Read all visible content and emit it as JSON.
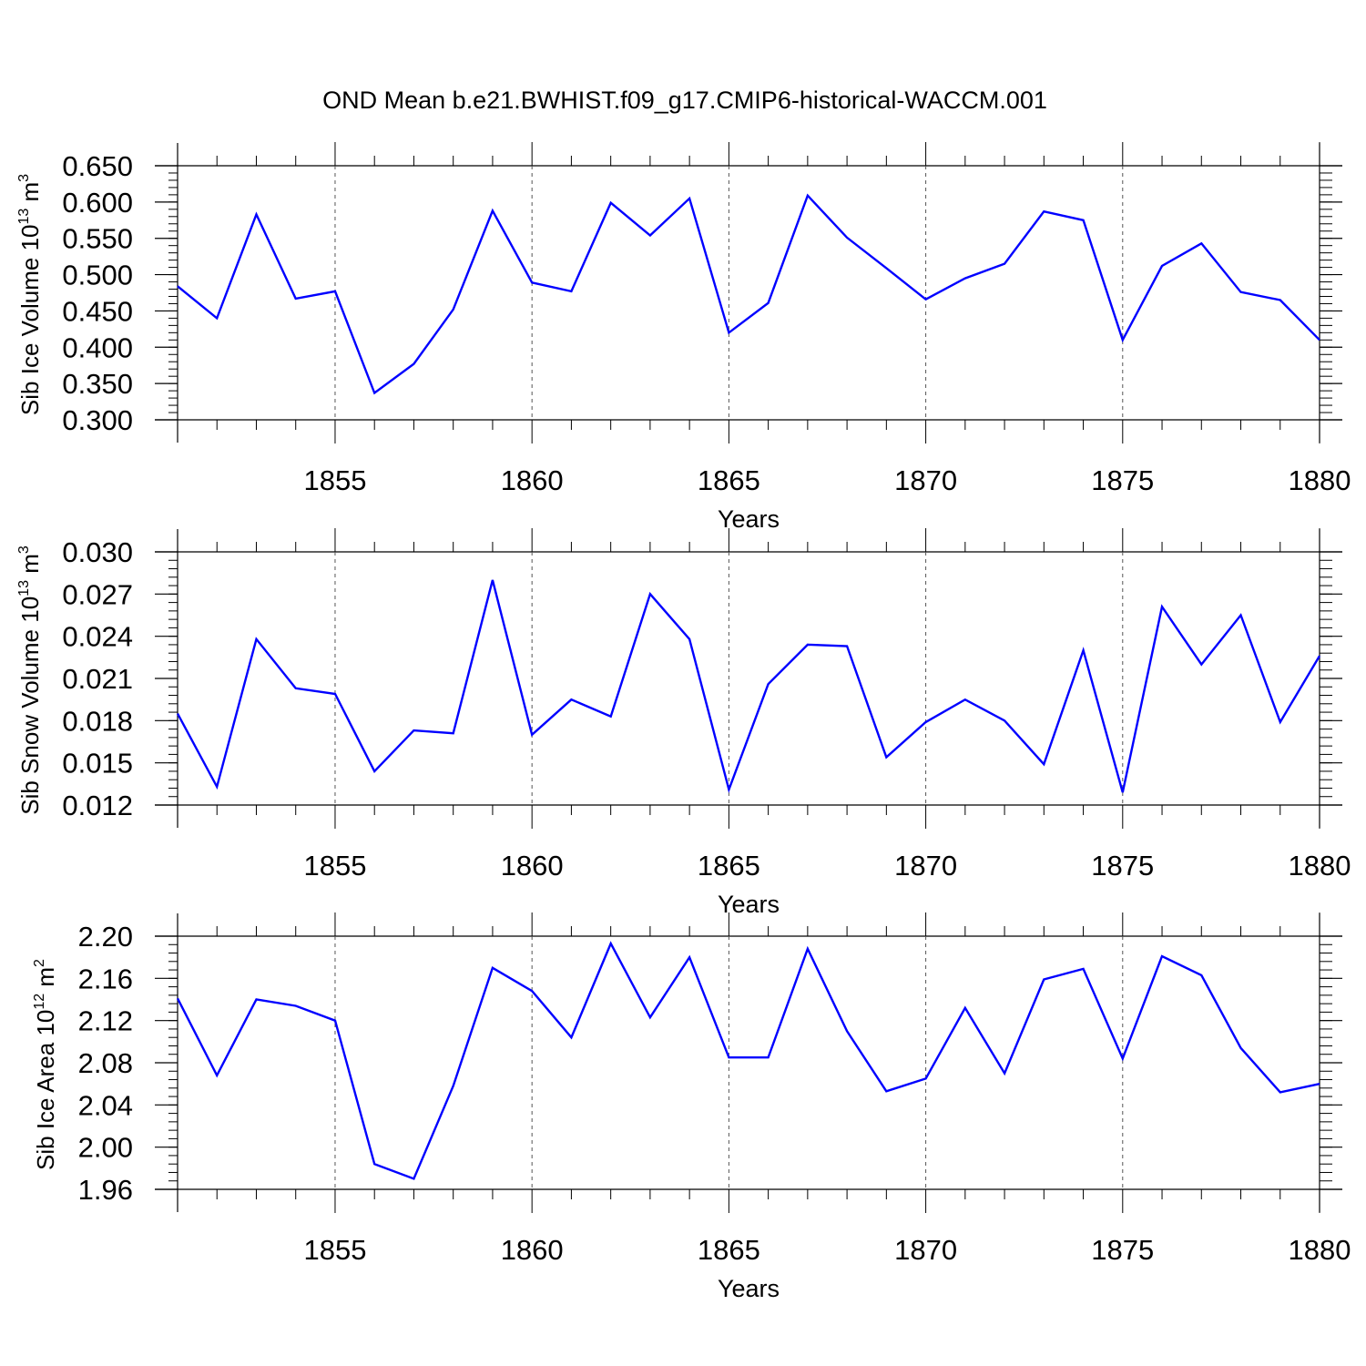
{
  "title": "OND Mean b.e21.BWHIST.f09_g17.CMIP6-historical-WACCM.001",
  "chart_data": [
    {
      "type": "line",
      "title": "OND Mean b.e21.BWHIST.f09_g17.CMIP6-historical-WACCM.001",
      "xlabel": "Years",
      "ylabel": {
        "main": "Sib Ice Volume 10",
        "sup": "13",
        "unit": " m",
        "unit_sup": "3"
      },
      "xlim": [
        1851,
        1880
      ],
      "ylim": [
        0.3,
        0.65
      ],
      "x_ticks": [
        1855,
        1860,
        1865,
        1870,
        1875,
        1880
      ],
      "x_tick_labels": [
        "1855",
        "1860",
        "1865",
        "1870",
        "1875",
        "1880"
      ],
      "y_ticks": [
        0.3,
        0.35,
        0.4,
        0.45,
        0.5,
        0.55,
        0.6,
        0.65
      ],
      "y_tick_labels": [
        "0.300",
        "0.350",
        "0.400",
        "0.450",
        "0.500",
        "0.550",
        "0.600",
        "0.650"
      ],
      "y_minor_step": 0.01,
      "gridlines_x": [
        1855,
        1860,
        1865,
        1870,
        1875
      ],
      "line_color": "#0000ff",
      "x": [
        1851,
        1852,
        1853,
        1854,
        1855,
        1856,
        1857,
        1858,
        1859,
        1860,
        1861,
        1862,
        1863,
        1864,
        1865,
        1866,
        1867,
        1868,
        1869,
        1870,
        1871,
        1872,
        1873,
        1874,
        1875,
        1876,
        1877,
        1878,
        1879,
        1880
      ],
      "values": [
        0.484,
        0.44,
        0.583,
        0.467,
        0.477,
        0.337,
        0.377,
        0.452,
        0.588,
        0.489,
        0.477,
        0.599,
        0.554,
        0.605,
        0.42,
        0.461,
        0.609,
        0.551,
        0.509,
        0.466,
        0.495,
        0.515,
        0.587,
        0.575,
        0.41,
        0.512,
        0.543,
        0.476,
        0.465,
        0.41
      ]
    },
    {
      "type": "line",
      "xlabel": "Years",
      "ylabel": {
        "main": "Sib Snow Volume 10",
        "sup": "13",
        "unit": " m",
        "unit_sup": "3"
      },
      "xlim": [
        1851,
        1880
      ],
      "ylim": [
        0.012,
        0.03
      ],
      "x_ticks": [
        1855,
        1860,
        1865,
        1870,
        1875,
        1880
      ],
      "x_tick_labels": [
        "1855",
        "1860",
        "1865",
        "1870",
        "1875",
        "1880"
      ],
      "y_ticks": [
        0.012,
        0.015,
        0.018,
        0.021,
        0.024,
        0.027,
        0.03
      ],
      "y_tick_labels": [
        "0.012",
        "0.015",
        "0.018",
        "0.021",
        "0.024",
        "0.027",
        "0.030"
      ],
      "y_minor_step": 0.0006,
      "gridlines_x": [
        1855,
        1860,
        1865,
        1870,
        1875
      ],
      "line_color": "#0000ff",
      "x": [
        1851,
        1852,
        1853,
        1854,
        1855,
        1856,
        1857,
        1858,
        1859,
        1860,
        1861,
        1862,
        1863,
        1864,
        1865,
        1866,
        1867,
        1868,
        1869,
        1870,
        1871,
        1872,
        1873,
        1874,
        1875,
        1876,
        1877,
        1878,
        1879,
        1880
      ],
      "values": [
        0.0185,
        0.0133,
        0.0238,
        0.0203,
        0.0199,
        0.0144,
        0.0173,
        0.0171,
        0.028,
        0.017,
        0.0195,
        0.0183,
        0.027,
        0.0238,
        0.0131,
        0.0206,
        0.0234,
        0.0233,
        0.0154,
        0.0179,
        0.0195,
        0.018,
        0.0149,
        0.023,
        0.0129,
        0.0261,
        0.022,
        0.0255,
        0.0179,
        0.0226
      ]
    },
    {
      "type": "line",
      "xlabel": "Years",
      "ylabel": {
        "main": "Sib Ice Area 10",
        "sup": "12",
        "unit": " m",
        "unit_sup": "2"
      },
      "xlim": [
        1851,
        1880
      ],
      "ylim": [
        1.96,
        2.2
      ],
      "x_ticks": [
        1855,
        1860,
        1865,
        1870,
        1875,
        1880
      ],
      "x_tick_labels": [
        "1855",
        "1860",
        "1865",
        "1870",
        "1875",
        "1880"
      ],
      "y_ticks": [
        1.96,
        2.0,
        2.04,
        2.08,
        2.12,
        2.16,
        2.2
      ],
      "y_tick_labels": [
        "1.96",
        "2.00",
        "2.04",
        "2.08",
        "2.12",
        "2.16",
        "2.20"
      ],
      "y_minor_step": 0.008,
      "gridlines_x": [
        1855,
        1860,
        1865,
        1870,
        1875
      ],
      "line_color": "#0000ff",
      "x": [
        1851,
        1852,
        1853,
        1854,
        1855,
        1856,
        1857,
        1858,
        1859,
        1860,
        1861,
        1862,
        1863,
        1864,
        1865,
        1866,
        1867,
        1868,
        1869,
        1870,
        1871,
        1872,
        1873,
        1874,
        1875,
        1876,
        1877,
        1878,
        1879,
        1880
      ],
      "values": [
        2.141,
        2.068,
        2.14,
        2.134,
        2.12,
        1.984,
        1.97,
        2.058,
        2.17,
        2.148,
        2.104,
        2.193,
        2.123,
        2.18,
        2.085,
        2.085,
        2.188,
        2.11,
        2.053,
        2.065,
        2.132,
        2.07,
        2.159,
        2.169,
        2.084,
        2.181,
        2.163,
        2.094,
        2.052,
        2.06
      ]
    }
  ]
}
